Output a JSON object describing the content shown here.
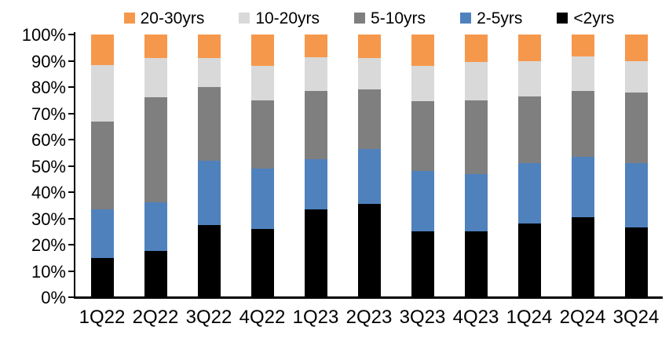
{
  "chart_data": {
    "type": "bar",
    "stacked": true,
    "percent_stacked": true,
    "title": "",
    "xlabel": "",
    "ylabel": "",
    "grid": false,
    "categories": [
      "1Q22",
      "2Q22",
      "3Q22",
      "4Q22",
      "1Q23",
      "2Q23",
      "3Q23",
      "4Q23",
      "1Q24",
      "2Q24",
      "3Q24"
    ],
    "series": [
      {
        "name": "<2yrs",
        "color": "#000000",
        "values": [
          15,
          17.5,
          27.5,
          26,
          33.5,
          35.5,
          25,
          25,
          28,
          30.5,
          26.5
        ]
      },
      {
        "name": "2-5yrs",
        "color": "#4F81BD",
        "values": [
          18.5,
          18.5,
          24.5,
          23,
          19,
          21,
          23,
          22,
          23,
          23,
          24.5
        ]
      },
      {
        "name": "5-10yrs",
        "color": "#7F7F7F",
        "values": [
          33.5,
          40,
          28,
          26,
          26,
          22.5,
          26.5,
          28,
          25.5,
          25,
          27
        ]
      },
      {
        "name": "10-20yrs",
        "color": "#D9D9D9",
        "values": [
          21.5,
          15,
          11,
          13,
          13,
          12,
          13.5,
          14.5,
          13.5,
          13,
          12
        ]
      },
      {
        "name": "20-30yrs",
        "color": "#F6984C",
        "values": [
          11.5,
          9,
          9,
          12,
          8.5,
          9,
          12,
          10.5,
          10,
          8.5,
          10
        ]
      }
    ],
    "legend": {
      "position": "top",
      "display_order": [
        "20-30yrs",
        "10-20yrs",
        "5-10yrs",
        "2-5yrs",
        "<2yrs"
      ]
    },
    "y_axis": {
      "min": 0,
      "max": 100,
      "tick_step": 10,
      "tick_labels": [
        "100%",
        "90%",
        "80%",
        "70%",
        "60%",
        "50%",
        "40%",
        "30%",
        "20%",
        "10%",
        "0%"
      ]
    }
  }
}
